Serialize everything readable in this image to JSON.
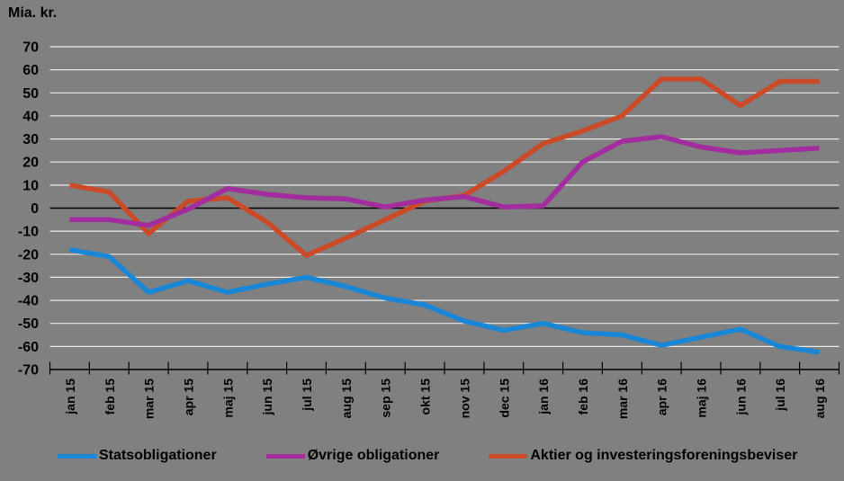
{
  "title": "Mia. kr.",
  "chart_data": {
    "type": "line",
    "title": "Mia. kr.",
    "ylabel": "Mia. kr.",
    "xlabel": "",
    "ylim": [
      -70,
      70
    ],
    "ytick_step": 10,
    "grid": true,
    "legend_position": "bottom",
    "background": "#808080",
    "gridline_color": "#EAEAEA",
    "axis_color": "#000000",
    "text_color": "#000000",
    "categories": [
      "jan 15",
      "feb 15",
      "mar 15",
      "apr 15",
      "maj 15",
      "jun 15",
      "jul 15",
      "aug 15",
      "sep 15",
      "okt 15",
      "nov 15",
      "dec 15",
      "jan 16",
      "feb 16",
      "mar 16",
      "apr 16",
      "maj 16",
      "jun 16",
      "jul 16",
      "aug 16"
    ],
    "series": [
      {
        "name": "Statsobligationer",
        "color": "#1A86D6",
        "values": [
          -18,
          -21,
          -36.5,
          -31.5,
          -36.5,
          -33,
          -30,
          -34,
          -39,
          -42,
          -49,
          -53,
          -50,
          -54,
          -55,
          -59.5,
          -56,
          -52.5,
          -60,
          -62.5
        ]
      },
      {
        "name": "Øvrige obligationer",
        "color": "#A32C9E",
        "values": [
          -5,
          -5,
          -7.5,
          -0.5,
          8.5,
          6,
          4.5,
          4,
          0.5,
          3.5,
          5,
          0.5,
          1,
          20,
          29,
          31,
          26.5,
          24,
          25,
          26
        ]
      },
      {
        "name": "Aktier og investeringsforeningsbeviser",
        "color": "#CB4A28",
        "values": [
          10,
          7,
          -11,
          3,
          4.5,
          -6,
          -20.5,
          -13,
          -5,
          3,
          5.5,
          16,
          28,
          33.5,
          40,
          56,
          56,
          44.5,
          55,
          55
        ]
      }
    ]
  }
}
